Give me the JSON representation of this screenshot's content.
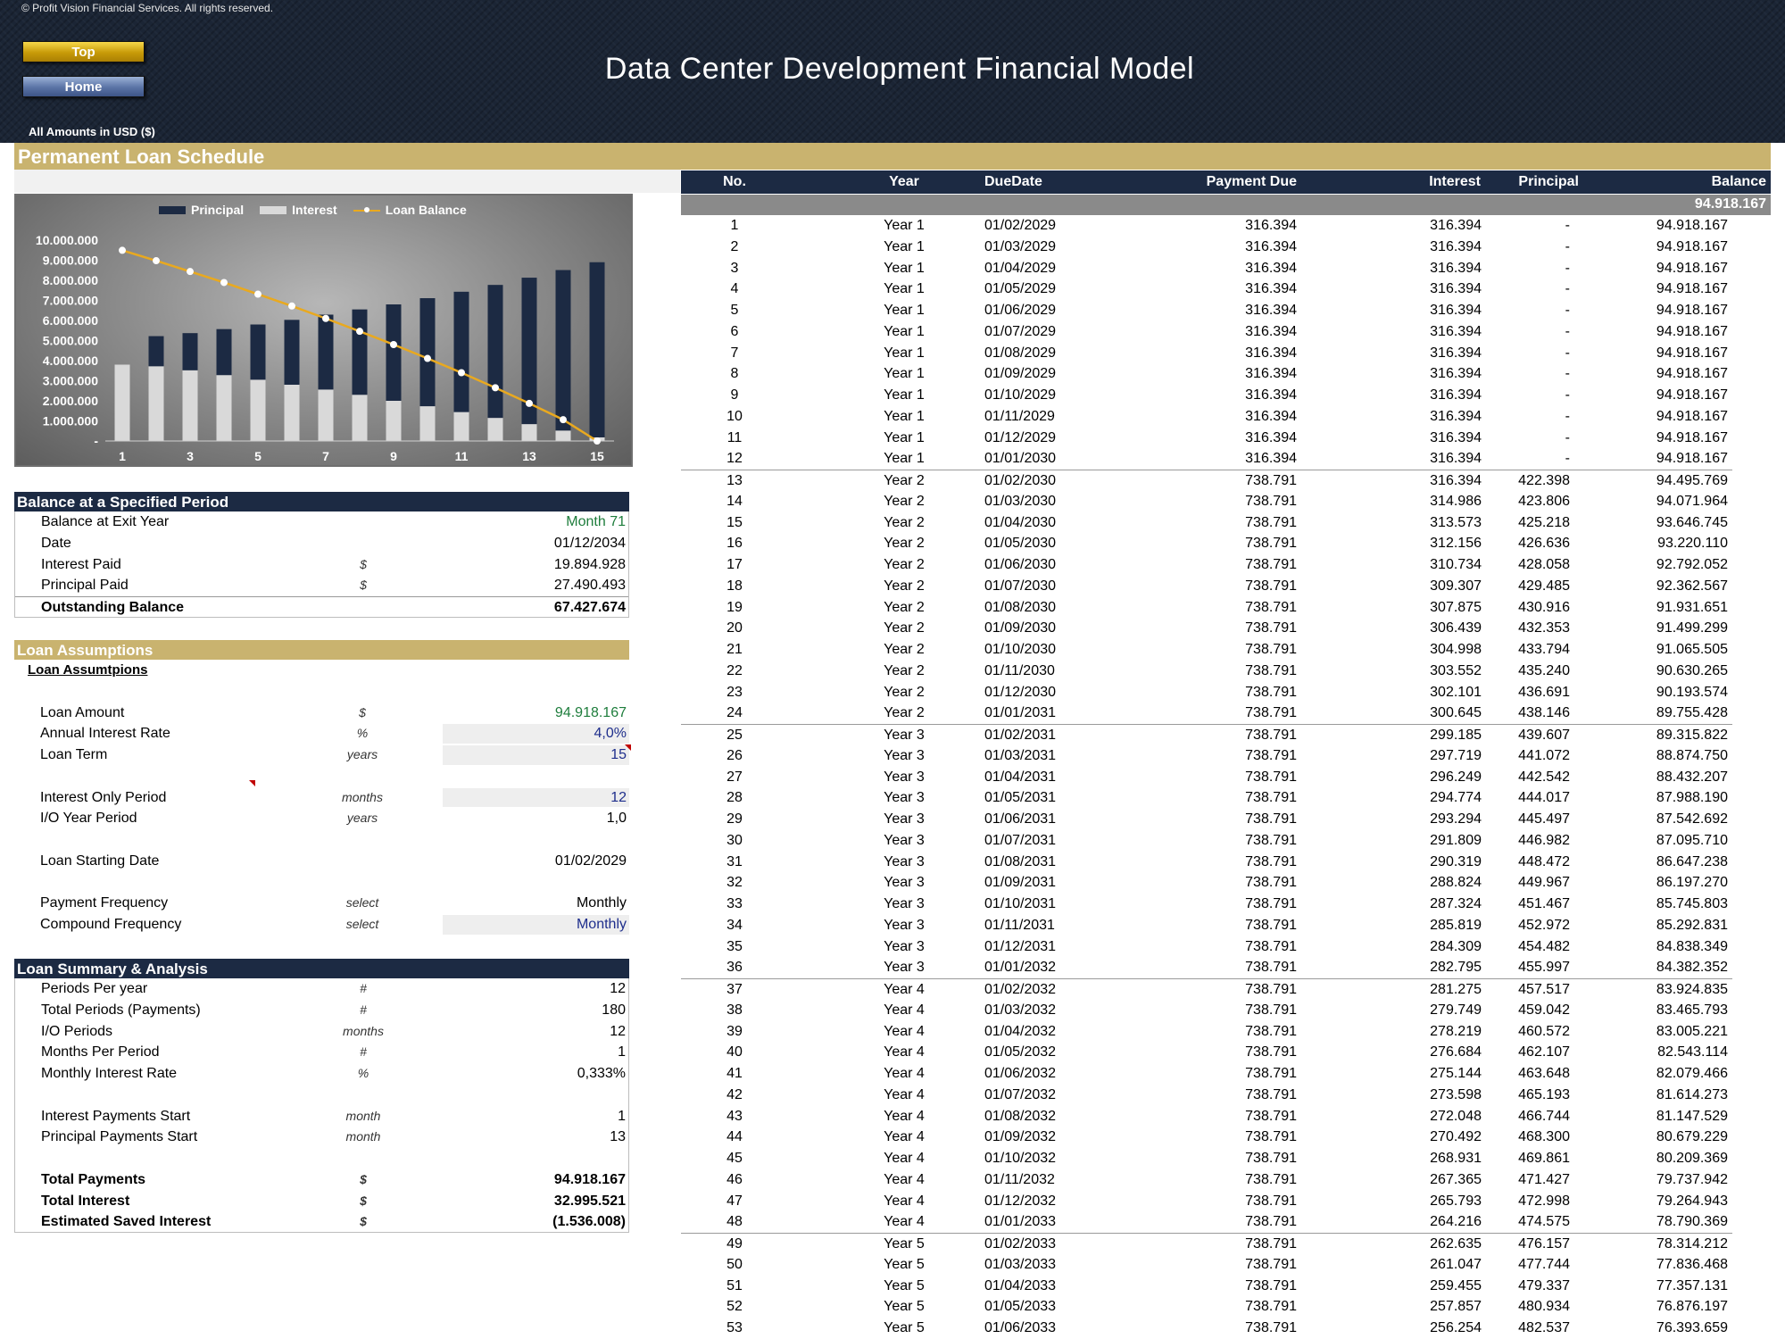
{
  "header": {
    "copyright": "© Profit Vision Financial Services. All rights reserved.",
    "title": "Data Center Development Financial Model",
    "btn_top": "Top",
    "btn_home": "Home",
    "amounts_note": "All Amounts in  USD ($)"
  },
  "section_title": "Permanent Loan Schedule",
  "chart_data": {
    "type": "bar",
    "categories": [
      1,
      2,
      3,
      4,
      5,
      6,
      7,
      8,
      9,
      10,
      11,
      12,
      13,
      14,
      15
    ],
    "x_tick_labels": [
      "1",
      "3",
      "5",
      "7",
      "9",
      "11",
      "13",
      "15"
    ],
    "y_tick_labels": [
      "10.000.000",
      "9.000.000",
      "8.000.000",
      "7.000.000",
      "6.000.000",
      "5.000.000",
      "4.000.000",
      "3.000.000",
      "2.000.000",
      "1.000.000",
      "-"
    ],
    "ylim": [
      0,
      10000000
    ],
    "stacked": true,
    "legend_position": "top",
    "grid": false,
    "series": [
      {
        "name": "Principal",
        "kind": "bar",
        "color": "#1c2a43",
        "values": [
          0,
          1500000,
          1850000,
          2290000,
          2750000,
          3230000,
          3730000,
          4250000,
          4800000,
          5380000,
          5990000,
          6620000,
          7290000,
          7990000,
          8720000
        ]
      },
      {
        "name": "Interest",
        "kind": "bar",
        "color": "#d9d9d9",
        "values": [
          3800000,
          3720000,
          3520000,
          3280000,
          3050000,
          2800000,
          2560000,
          2300000,
          2000000,
          1730000,
          1440000,
          1150000,
          840000,
          520000,
          180000
        ]
      },
      {
        "name": "Loan Balance",
        "kind": "line",
        "color": "#e9a91f",
        "values": [
          9491817,
          8976000,
          8438000,
          7890000,
          7310000,
          6720000,
          6100000,
          5460000,
          4800000,
          4110000,
          3400000,
          2650000,
          1870000,
          1060000,
          0
        ]
      }
    ]
  },
  "balance_section": {
    "title": "Balance at a Specified Period",
    "rows": [
      {
        "label": "Balance at Exit Year",
        "unit": "",
        "value": "Month 71"
      },
      {
        "label": "Date",
        "unit": "",
        "value": "01/12/2034"
      },
      {
        "label": "Interest Paid",
        "unit": "$",
        "value": "19.894.928"
      },
      {
        "label": "Principal Paid",
        "unit": "$",
        "value": "27.490.493"
      },
      {
        "label": "Outstanding Balance",
        "unit": "",
        "value": "67.427.674"
      }
    ]
  },
  "assumptions_section": {
    "title": "Loan Assumptions",
    "subtitle": "Loan Assumtpions",
    "rows": [
      {
        "label": "Loan Amount",
        "unit": "$",
        "value": "94.918.167"
      },
      {
        "label": "Annual Interest Rate",
        "unit": "%",
        "value": "4,0%"
      },
      {
        "label": "Loan Term",
        "unit": "years",
        "value": "15"
      },
      {
        "label": "Interest Only Period",
        "unit": "months",
        "value": "12"
      },
      {
        "label": "I/O Year Period",
        "unit": "years",
        "value": "1,0"
      },
      {
        "label": "Loan Starting Date",
        "unit": "",
        "value": "01/02/2029"
      },
      {
        "label": "Payment Frequency",
        "unit": "select",
        "value": "Monthly"
      },
      {
        "label": "Compound Frequency",
        "unit": "select",
        "value": "Monthly"
      }
    ]
  },
  "summary_section": {
    "title": "Loan Summary & Analysis",
    "rows": [
      {
        "label": "Periods Per year",
        "unit": "#",
        "value": "12"
      },
      {
        "label": "Total Periods (Payments)",
        "unit": "#",
        "value": "180"
      },
      {
        "label": "I/O Periods",
        "unit": "months",
        "value": "12"
      },
      {
        "label": "Months Per Period",
        "unit": "#",
        "value": "1"
      },
      {
        "label": "Monthly Interest Rate",
        "unit": "%",
        "value": "0,333%"
      },
      {
        "label": "Interest Payments Start",
        "unit": "month",
        "value": "1"
      },
      {
        "label": "Principal Payments Start",
        "unit": "month",
        "value": "13"
      },
      {
        "label": "Total Payments",
        "unit": "$",
        "value": "94.918.167"
      },
      {
        "label": "Total Interest",
        "unit": "$",
        "value": "32.995.521"
      },
      {
        "label": "Estimated Saved Interest",
        "unit": "$",
        "value": "(1.536.008)"
      }
    ]
  },
  "schedule": {
    "headers": {
      "no": "No.",
      "year": "Year",
      "due": "DueDate",
      "payment": "Payment Due",
      "interest": "Interest",
      "principal": "Principal",
      "balance": "Balance"
    },
    "opening_balance": "94.918.167",
    "rows": [
      [
        "1",
        "Year 1",
        "01/02/2029",
        "316.394",
        "316.394",
        "-",
        "94.918.167"
      ],
      [
        "2",
        "Year 1",
        "01/03/2029",
        "316.394",
        "316.394",
        "-",
        "94.918.167"
      ],
      [
        "3",
        "Year 1",
        "01/04/2029",
        "316.394",
        "316.394",
        "-",
        "94.918.167"
      ],
      [
        "4",
        "Year 1",
        "01/05/2029",
        "316.394",
        "316.394",
        "-",
        "94.918.167"
      ],
      [
        "5",
        "Year 1",
        "01/06/2029",
        "316.394",
        "316.394",
        "-",
        "94.918.167"
      ],
      [
        "6",
        "Year 1",
        "01/07/2029",
        "316.394",
        "316.394",
        "-",
        "94.918.167"
      ],
      [
        "7",
        "Year 1",
        "01/08/2029",
        "316.394",
        "316.394",
        "-",
        "94.918.167"
      ],
      [
        "8",
        "Year 1",
        "01/09/2029",
        "316.394",
        "316.394",
        "-",
        "94.918.167"
      ],
      [
        "9",
        "Year 1",
        "01/10/2029",
        "316.394",
        "316.394",
        "-",
        "94.918.167"
      ],
      [
        "10",
        "Year 1",
        "01/11/2029",
        "316.394",
        "316.394",
        "-",
        "94.918.167"
      ],
      [
        "11",
        "Year 1",
        "01/12/2029",
        "316.394",
        "316.394",
        "-",
        "94.918.167"
      ],
      [
        "12",
        "Year 1",
        "01/01/2030",
        "316.394",
        "316.394",
        "-",
        "94.918.167"
      ],
      [
        "13",
        "Year 2",
        "01/02/2030",
        "738.791",
        "316.394",
        "422.398",
        "94.495.769"
      ],
      [
        "14",
        "Year 2",
        "01/03/2030",
        "738.791",
        "314.986",
        "423.806",
        "94.071.964"
      ],
      [
        "15",
        "Year 2",
        "01/04/2030",
        "738.791",
        "313.573",
        "425.218",
        "93.646.745"
      ],
      [
        "16",
        "Year 2",
        "01/05/2030",
        "738.791",
        "312.156",
        "426.636",
        "93.220.110"
      ],
      [
        "17",
        "Year 2",
        "01/06/2030",
        "738.791",
        "310.734",
        "428.058",
        "92.792.052"
      ],
      [
        "18",
        "Year 2",
        "01/07/2030",
        "738.791",
        "309.307",
        "429.485",
        "92.362.567"
      ],
      [
        "19",
        "Year 2",
        "01/08/2030",
        "738.791",
        "307.875",
        "430.916",
        "91.931.651"
      ],
      [
        "20",
        "Year 2",
        "01/09/2030",
        "738.791",
        "306.439",
        "432.353",
        "91.499.299"
      ],
      [
        "21",
        "Year 2",
        "01/10/2030",
        "738.791",
        "304.998",
        "433.794",
        "91.065.505"
      ],
      [
        "22",
        "Year 2",
        "01/11/2030",
        "738.791",
        "303.552",
        "435.240",
        "90.630.265"
      ],
      [
        "23",
        "Year 2",
        "01/12/2030",
        "738.791",
        "302.101",
        "436.691",
        "90.193.574"
      ],
      [
        "24",
        "Year 2",
        "01/01/2031",
        "738.791",
        "300.645",
        "438.146",
        "89.755.428"
      ],
      [
        "25",
        "Year 3",
        "01/02/2031",
        "738.791",
        "299.185",
        "439.607",
        "89.315.822"
      ],
      [
        "26",
        "Year 3",
        "01/03/2031",
        "738.791",
        "297.719",
        "441.072",
        "88.874.750"
      ],
      [
        "27",
        "Year 3",
        "01/04/2031",
        "738.791",
        "296.249",
        "442.542",
        "88.432.207"
      ],
      [
        "28",
        "Year 3",
        "01/05/2031",
        "738.791",
        "294.774",
        "444.017",
        "87.988.190"
      ],
      [
        "29",
        "Year 3",
        "01/06/2031",
        "738.791",
        "293.294",
        "445.497",
        "87.542.692"
      ],
      [
        "30",
        "Year 3",
        "01/07/2031",
        "738.791",
        "291.809",
        "446.982",
        "87.095.710"
      ],
      [
        "31",
        "Year 3",
        "01/08/2031",
        "738.791",
        "290.319",
        "448.472",
        "86.647.238"
      ],
      [
        "32",
        "Year 3",
        "01/09/2031",
        "738.791",
        "288.824",
        "449.967",
        "86.197.270"
      ],
      [
        "33",
        "Year 3",
        "01/10/2031",
        "738.791",
        "287.324",
        "451.467",
        "85.745.803"
      ],
      [
        "34",
        "Year 3",
        "01/11/2031",
        "738.791",
        "285.819",
        "452.972",
        "85.292.831"
      ],
      [
        "35",
        "Year 3",
        "01/12/2031",
        "738.791",
        "284.309",
        "454.482",
        "84.838.349"
      ],
      [
        "36",
        "Year 3",
        "01/01/2032",
        "738.791",
        "282.795",
        "455.997",
        "84.382.352"
      ],
      [
        "37",
        "Year 4",
        "01/02/2032",
        "738.791",
        "281.275",
        "457.517",
        "83.924.835"
      ],
      [
        "38",
        "Year 4",
        "01/03/2032",
        "738.791",
        "279.749",
        "459.042",
        "83.465.793"
      ],
      [
        "39",
        "Year 4",
        "01/04/2032",
        "738.791",
        "278.219",
        "460.572",
        "83.005.221"
      ],
      [
        "40",
        "Year 4",
        "01/05/2032",
        "738.791",
        "276.684",
        "462.107",
        "82.543.114"
      ],
      [
        "41",
        "Year 4",
        "01/06/2032",
        "738.791",
        "275.144",
        "463.648",
        "82.079.466"
      ],
      [
        "42",
        "Year 4",
        "01/07/2032",
        "738.791",
        "273.598",
        "465.193",
        "81.614.273"
      ],
      [
        "43",
        "Year 4",
        "01/08/2032",
        "738.791",
        "272.048",
        "466.744",
        "81.147.529"
      ],
      [
        "44",
        "Year 4",
        "01/09/2032",
        "738.791",
        "270.492",
        "468.300",
        "80.679.229"
      ],
      [
        "45",
        "Year 4",
        "01/10/2032",
        "738.791",
        "268.931",
        "469.861",
        "80.209.369"
      ],
      [
        "46",
        "Year 4",
        "01/11/2032",
        "738.791",
        "267.365",
        "471.427",
        "79.737.942"
      ],
      [
        "47",
        "Year 4",
        "01/12/2032",
        "738.791",
        "265.793",
        "472.998",
        "79.264.943"
      ],
      [
        "48",
        "Year 4",
        "01/01/2033",
        "738.791",
        "264.216",
        "474.575",
        "78.790.369"
      ],
      [
        "49",
        "Year 5",
        "01/02/2033",
        "738.791",
        "262.635",
        "476.157",
        "78.314.212"
      ],
      [
        "50",
        "Year 5",
        "01/03/2033",
        "738.791",
        "261.047",
        "477.744",
        "77.836.468"
      ],
      [
        "51",
        "Year 5",
        "01/04/2033",
        "738.791",
        "259.455",
        "479.337",
        "77.357.131"
      ],
      [
        "52",
        "Year 5",
        "01/05/2033",
        "738.791",
        "257.857",
        "480.934",
        "76.876.197"
      ],
      [
        "53",
        "Year 5",
        "01/06/2033",
        "738.791",
        "256.254",
        "482.537",
        "76.393.659"
      ]
    ]
  }
}
